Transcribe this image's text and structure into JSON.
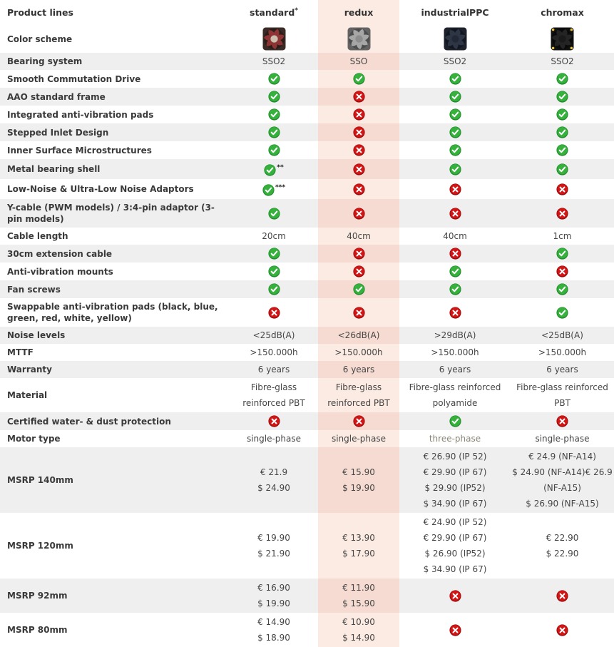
{
  "colors": {
    "stripe": "#efefef",
    "redux_bg": "#fcebe3",
    "redux_bg_striped": "#f5dbd1",
    "check_green": "#35b13c",
    "check_edge": "#1f8c2c",
    "cross_red": "#d41515",
    "cross_edge": "#9c0a0a",
    "label_text": "#3a3a3a",
    "value_text": "#454545",
    "muted_text": "#8b8676"
  },
  "columns": [
    {
      "key": "feature",
      "label": "Product lines"
    },
    {
      "key": "standard",
      "label": "standard",
      "sup": "*"
    },
    {
      "key": "redux",
      "label": "redux"
    },
    {
      "key": "industrialppc",
      "label": "industrialPPC"
    },
    {
      "key": "chromax",
      "label": "chromax"
    }
  ],
  "fans": {
    "standard": {
      "frame": "#3a2b26",
      "well": "#2a1e1a",
      "blade": "#8e3434",
      "hub": "#cdbfae"
    },
    "redux": {
      "frame": "#636363",
      "well": "#4c4c4c",
      "blade": "#a6a6a6",
      "hub": "#8d8d8d"
    },
    "industrialppc": {
      "frame": "#1c212c",
      "well": "#12161e",
      "blade": "#2e3645",
      "hub": "#222836"
    },
    "chromax": {
      "frame": "#111111",
      "well": "#0a0a0a",
      "blade": "#242424",
      "hub": "#1a1a1a",
      "corner": "#e3c23d"
    }
  },
  "rows": [
    {
      "label": "Color scheme",
      "cells": [
        {
          "t": "fan",
          "fan": "standard"
        },
        {
          "t": "fan",
          "fan": "redux"
        },
        {
          "t": "fan",
          "fan": "industrialppc"
        },
        {
          "t": "fan",
          "fan": "chromax"
        }
      ]
    },
    {
      "label": "Bearing system",
      "cells": [
        {
          "t": "text",
          "v": "SSO2"
        },
        {
          "t": "text",
          "v": "SSO"
        },
        {
          "t": "text",
          "v": "SSO2"
        },
        {
          "t": "text",
          "v": "SSO2"
        }
      ]
    },
    {
      "label": "Smooth Commutation Drive",
      "cells": [
        {
          "t": "check"
        },
        {
          "t": "check"
        },
        {
          "t": "check"
        },
        {
          "t": "check"
        }
      ]
    },
    {
      "label": "AAO standard frame",
      "cells": [
        {
          "t": "check"
        },
        {
          "t": "cross"
        },
        {
          "t": "check"
        },
        {
          "t": "check"
        }
      ]
    },
    {
      "label": "Integrated anti-vibration pads",
      "cells": [
        {
          "t": "check"
        },
        {
          "t": "cross"
        },
        {
          "t": "check"
        },
        {
          "t": "check"
        }
      ]
    },
    {
      "label": "Stepped Inlet Design",
      "cells": [
        {
          "t": "check"
        },
        {
          "t": "cross"
        },
        {
          "t": "check"
        },
        {
          "t": "check"
        }
      ]
    },
    {
      "label": "Inner Surface Microstructures",
      "cells": [
        {
          "t": "check"
        },
        {
          "t": "cross"
        },
        {
          "t": "check"
        },
        {
          "t": "check"
        }
      ]
    },
    {
      "label": "Metal bearing shell",
      "cells": [
        {
          "t": "check",
          "suffix": "**"
        },
        {
          "t": "cross"
        },
        {
          "t": "check"
        },
        {
          "t": "check"
        }
      ]
    },
    {
      "label": "Low-Noise & Ultra-Low Noise Adaptors",
      "cells": [
        {
          "t": "check",
          "suffix": "***"
        },
        {
          "t": "cross"
        },
        {
          "t": "cross"
        },
        {
          "t": "cross"
        }
      ]
    },
    {
      "label": "Y-cable (PWM models) / 3:4-pin adaptor (3-pin models)",
      "cells": [
        {
          "t": "check"
        },
        {
          "t": "cross"
        },
        {
          "t": "cross"
        },
        {
          "t": "cross"
        }
      ]
    },
    {
      "label": "Cable length",
      "cells": [
        {
          "t": "text",
          "v": "20cm"
        },
        {
          "t": "text",
          "v": "40cm"
        },
        {
          "t": "text",
          "v": "40cm"
        },
        {
          "t": "text",
          "v": "1cm"
        }
      ]
    },
    {
      "label": "30cm extension cable",
      "cells": [
        {
          "t": "check"
        },
        {
          "t": "cross"
        },
        {
          "t": "cross"
        },
        {
          "t": "check"
        }
      ]
    },
    {
      "label": "Anti-vibration mounts",
      "cells": [
        {
          "t": "check"
        },
        {
          "t": "cross"
        },
        {
          "t": "check"
        },
        {
          "t": "cross"
        }
      ]
    },
    {
      "label": "Fan screws",
      "cells": [
        {
          "t": "check"
        },
        {
          "t": "check"
        },
        {
          "t": "check"
        },
        {
          "t": "check"
        }
      ]
    },
    {
      "label": "Swappable anti-vibration pads (black, blue, green, red, white, yellow)",
      "cells": [
        {
          "t": "cross"
        },
        {
          "t": "cross"
        },
        {
          "t": "cross"
        },
        {
          "t": "check"
        }
      ]
    },
    {
      "label": "Noise levels",
      "cells": [
        {
          "t": "text",
          "v": "<25dB(A)"
        },
        {
          "t": "text",
          "v": "<26dB(A)"
        },
        {
          "t": "text",
          "v": ">29dB(A)"
        },
        {
          "t": "text",
          "v": "<25dB(A)"
        }
      ]
    },
    {
      "label": "MTTF",
      "cells": [
        {
          "t": "text",
          "v": ">150.000h"
        },
        {
          "t": "text",
          "v": ">150.000h"
        },
        {
          "t": "text",
          "v": ">150.000h"
        },
        {
          "t": "text",
          "v": ">150.000h"
        }
      ]
    },
    {
      "label": "Warranty",
      "cells": [
        {
          "t": "text",
          "v": "6 years"
        },
        {
          "t": "text",
          "v": "6 years"
        },
        {
          "t": "text",
          "v": "6 years"
        },
        {
          "t": "text",
          "v": "6 years"
        }
      ]
    },
    {
      "label": "Material",
      "cells": [
        {
          "t": "lines",
          "v": [
            "Fibre-glass",
            "reinforced PBT"
          ]
        },
        {
          "t": "lines",
          "v": [
            "Fibre-glass",
            "reinforced PBT"
          ]
        },
        {
          "t": "lines",
          "v": [
            "Fibre-glass reinforced",
            "polyamide"
          ]
        },
        {
          "t": "lines",
          "v": [
            "Fibre-glass reinforced",
            "PBT"
          ]
        }
      ]
    },
    {
      "label": "Certified water- & dust protection",
      "cells": [
        {
          "t": "cross"
        },
        {
          "t": "cross"
        },
        {
          "t": "check"
        },
        {
          "t": "cross"
        }
      ]
    },
    {
      "label": "Motor type",
      "cells": [
        {
          "t": "text",
          "v": "single-phase"
        },
        {
          "t": "text",
          "v": "single-phase"
        },
        {
          "t": "text",
          "v": "three-phase",
          "muted": true
        },
        {
          "t": "text",
          "v": "single-phase"
        }
      ]
    },
    {
      "label": "MSRP 140mm",
      "cells": [
        {
          "t": "lines",
          "v": [
            "€ 21.9",
            "$ 24.90"
          ]
        },
        {
          "t": "lines",
          "v": [
            "€ 15.90",
            "$ 19.90"
          ]
        },
        {
          "t": "lines",
          "v": [
            "€ 26.90 (IP 52)",
            "€ 29.90 (IP 67)",
            "$ 29.90 (IP52)",
            "$ 34.90 (IP 67)"
          ]
        },
        {
          "t": "lines",
          "v": [
            "€ 24.9 (NF-A14)",
            "$ 24.90 (NF-A14)€ 26.9",
            "(NF-A15)",
            "$ 26.90 (NF-A15)"
          ]
        }
      ]
    },
    {
      "label": "MSRP 120mm",
      "cells": [
        {
          "t": "lines",
          "v": [
            "€ 19.90",
            "$ 21.90"
          ]
        },
        {
          "t": "lines",
          "v": [
            "€ 13.90",
            "$ 17.90"
          ]
        },
        {
          "t": "lines",
          "v": [
            "€ 24.90 (IP 52)",
            "€ 29.90 (IP 67)",
            "$ 26.90 (IP52)",
            "$ 34.90 (IP 67)"
          ]
        },
        {
          "t": "lines",
          "v": [
            "€ 22.90",
            "$ 22.90"
          ]
        }
      ]
    },
    {
      "label": "MSRP 92mm",
      "cells": [
        {
          "t": "lines",
          "v": [
            "€ 16.90",
            "$ 19.90"
          ]
        },
        {
          "t": "lines",
          "v": [
            "€ 11.90",
            "$ 15.90"
          ]
        },
        {
          "t": "cross"
        },
        {
          "t": "cross"
        }
      ]
    },
    {
      "label": "MSRP 80mm",
      "cells": [
        {
          "t": "lines",
          "v": [
            "€ 14.90",
            "$ 18.90"
          ]
        },
        {
          "t": "lines",
          "v": [
            "€ 10.90",
            "$ 14.90"
          ]
        },
        {
          "t": "cross"
        },
        {
          "t": "cross"
        }
      ]
    }
  ]
}
